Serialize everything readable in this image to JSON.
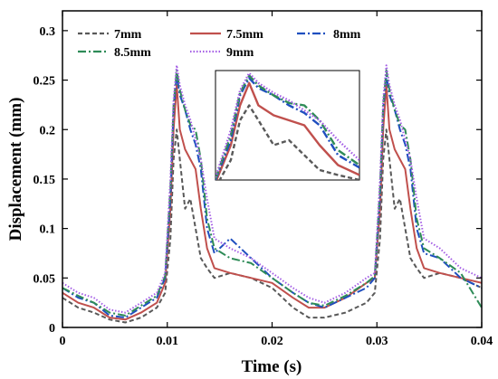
{
  "chart_data": {
    "type": "line",
    "title": "",
    "xlabel": "Time (s)",
    "ylabel": "Displacement (mm)",
    "xlim": [
      0,
      0.04
    ],
    "ylim": [
      0,
      0.32
    ],
    "x_ticks": [
      "0",
      "0.01",
      "0.02",
      "0.03",
      "0.04"
    ],
    "y_ticks": [
      "0",
      "0.05",
      "0.1",
      "0.15",
      "0.2",
      "0.25",
      "0.3"
    ],
    "legend_position": "top-left",
    "grid": false,
    "series": [
      {
        "name": "7mm",
        "color": "#595959",
        "dash": "dash",
        "x": [
          0,
          0.0015,
          0.003,
          0.0045,
          0.006,
          0.0075,
          0.009,
          0.0098,
          0.0103,
          0.0106,
          0.0109,
          0.0112,
          0.0117,
          0.0122,
          0.0127,
          0.0132,
          0.0138,
          0.0145,
          0.016,
          0.018,
          0.02,
          0.022,
          0.0235,
          0.025,
          0.027,
          0.029,
          0.0298,
          0.0303,
          0.0306,
          0.0309,
          0.0312,
          0.0317,
          0.0322,
          0.0327,
          0.0332,
          0.0338,
          0.0345,
          0.036,
          0.038,
          0.04
        ],
        "y": [
          0.03,
          0.02,
          0.015,
          0.008,
          0.005,
          0.01,
          0.02,
          0.035,
          0.09,
          0.17,
          0.2,
          0.17,
          0.12,
          0.13,
          0.1,
          0.07,
          0.06,
          0.05,
          0.055,
          0.05,
          0.04,
          0.02,
          0.01,
          0.01,
          0.015,
          0.025,
          0.035,
          0.09,
          0.17,
          0.2,
          0.17,
          0.12,
          0.13,
          0.1,
          0.07,
          0.06,
          0.05,
          0.055,
          0.05,
          0.04
        ]
      },
      {
        "name": "7.5mm",
        "color": "#c0504d",
        "dash": "solid",
        "x": [
          0,
          0.0015,
          0.003,
          0.0045,
          0.006,
          0.0075,
          0.009,
          0.0098,
          0.0103,
          0.0106,
          0.0109,
          0.0112,
          0.0117,
          0.0122,
          0.0127,
          0.0132,
          0.0138,
          0.0145,
          0.016,
          0.018,
          0.02,
          0.022,
          0.0235,
          0.025,
          0.027,
          0.029,
          0.0298,
          0.0303,
          0.0306,
          0.0309,
          0.0312,
          0.0317,
          0.0322,
          0.0327,
          0.0332,
          0.0338,
          0.0345,
          0.036,
          0.038,
          0.04
        ],
        "y": [
          0.035,
          0.025,
          0.02,
          0.01,
          0.008,
          0.015,
          0.025,
          0.045,
          0.12,
          0.2,
          0.245,
          0.2,
          0.18,
          0.17,
          0.16,
          0.12,
          0.08,
          0.06,
          0.055,
          0.05,
          0.045,
          0.03,
          0.02,
          0.02,
          0.03,
          0.045,
          0.05,
          0.12,
          0.2,
          0.245,
          0.2,
          0.18,
          0.17,
          0.16,
          0.12,
          0.08,
          0.06,
          0.055,
          0.05,
          0.045
        ]
      },
      {
        "name": "8mm",
        "color": "#1f4fbf",
        "dash": "dashdot",
        "x": [
          0,
          0.0015,
          0.003,
          0.0045,
          0.006,
          0.0075,
          0.009,
          0.0098,
          0.0103,
          0.0106,
          0.0109,
          0.0112,
          0.0117,
          0.0122,
          0.0127,
          0.0132,
          0.0138,
          0.0145,
          0.016,
          0.018,
          0.02,
          0.022,
          0.0235,
          0.025,
          0.027,
          0.029,
          0.0298,
          0.0303,
          0.0306,
          0.0309,
          0.0312,
          0.0317,
          0.0322,
          0.0327,
          0.0332,
          0.0338,
          0.0345,
          0.036,
          0.038,
          0.04
        ],
        "y": [
          0.04,
          0.03,
          0.025,
          0.012,
          0.01,
          0.02,
          0.03,
          0.05,
          0.13,
          0.22,
          0.255,
          0.235,
          0.22,
          0.2,
          0.185,
          0.16,
          0.1,
          0.075,
          0.09,
          0.07,
          0.05,
          0.035,
          0.025,
          0.02,
          0.03,
          0.04,
          0.05,
          0.13,
          0.22,
          0.255,
          0.235,
          0.22,
          0.2,
          0.185,
          0.16,
          0.1,
          0.075,
          0.07,
          0.05,
          0.04
        ]
      },
      {
        "name": "8.5mm",
        "color": "#2e8b57",
        "dash": "dashdot",
        "x": [
          0,
          0.0015,
          0.003,
          0.0045,
          0.006,
          0.0075,
          0.009,
          0.0098,
          0.0103,
          0.0106,
          0.0109,
          0.0112,
          0.0117,
          0.0122,
          0.0127,
          0.0132,
          0.0138,
          0.0145,
          0.016,
          0.018,
          0.02,
          0.022,
          0.0235,
          0.025,
          0.027,
          0.029,
          0.0298,
          0.0303,
          0.0306,
          0.0309,
          0.0312,
          0.0317,
          0.0322,
          0.0327,
          0.0332,
          0.0338,
          0.0345,
          0.036,
          0.038,
          0.04
        ],
        "y": [
          0.04,
          0.032,
          0.025,
          0.015,
          0.012,
          0.022,
          0.032,
          0.052,
          0.14,
          0.225,
          0.26,
          0.24,
          0.22,
          0.205,
          0.2,
          0.17,
          0.11,
          0.08,
          0.07,
          0.065,
          0.05,
          0.035,
          0.025,
          0.022,
          0.032,
          0.045,
          0.052,
          0.14,
          0.225,
          0.26,
          0.24,
          0.22,
          0.205,
          0.2,
          0.17,
          0.11,
          0.08,
          0.07,
          0.055,
          0.02
        ]
      },
      {
        "name": "9mm",
        "color": "#a45ee5",
        "dash": "dot",
        "x": [
          0,
          0.0015,
          0.003,
          0.0045,
          0.006,
          0.0075,
          0.009,
          0.0098,
          0.0103,
          0.0106,
          0.0109,
          0.0112,
          0.0117,
          0.0122,
          0.0127,
          0.0132,
          0.0138,
          0.0145,
          0.016,
          0.018,
          0.02,
          0.022,
          0.0235,
          0.025,
          0.027,
          0.029,
          0.0298,
          0.0303,
          0.0306,
          0.0309,
          0.0312,
          0.0317,
          0.0322,
          0.0327,
          0.0332,
          0.0338,
          0.0345,
          0.036,
          0.038,
          0.04
        ],
        "y": [
          0.045,
          0.035,
          0.03,
          0.018,
          0.015,
          0.025,
          0.035,
          0.055,
          0.15,
          0.23,
          0.265,
          0.245,
          0.225,
          0.21,
          0.19,
          0.17,
          0.13,
          0.09,
          0.08,
          0.07,
          0.055,
          0.04,
          0.03,
          0.025,
          0.035,
          0.05,
          0.055,
          0.15,
          0.23,
          0.265,
          0.245,
          0.225,
          0.21,
          0.19,
          0.17,
          0.13,
          0.09,
          0.08,
          0.06,
          0.05
        ]
      }
    ]
  }
}
